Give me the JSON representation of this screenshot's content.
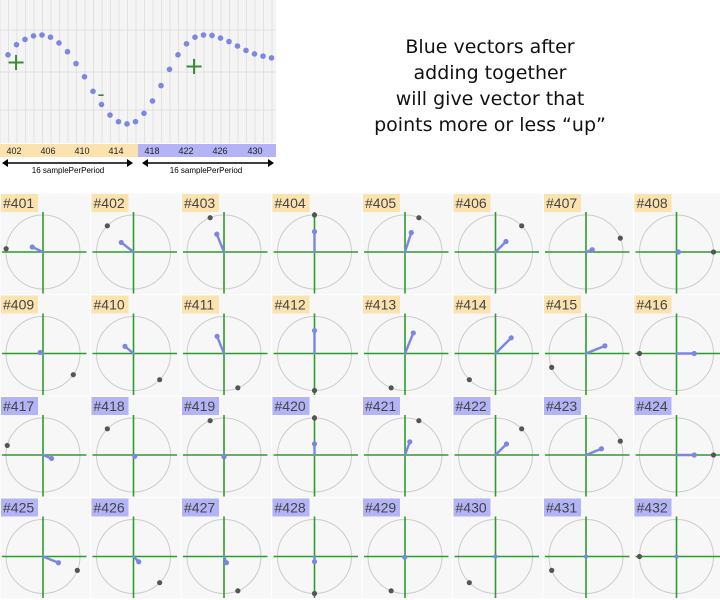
{
  "waveform": {
    "samples": [
      0.55,
      0.78,
      0.9,
      0.98,
      1.0,
      0.95,
      0.82,
      0.62,
      0.35,
      0.05,
      -0.28,
      -0.58,
      -0.82,
      -0.97,
      -1.02,
      -0.97,
      -0.78,
      -0.5,
      -0.15,
      0.22,
      0.55,
      0.8,
      0.95,
      1.0,
      0.99,
      0.93,
      0.85,
      0.75,
      0.65,
      0.57,
      0.52,
      0.48,
      0.46
    ],
    "plus_symbol": "+",
    "minus_symbol": "-",
    "ticks_first_period": [
      "402",
      "406",
      "410",
      "414"
    ],
    "ticks_second_period": [
      "418",
      "422",
      "426",
      "430"
    ],
    "period_label_left": "16 samplePerPeriod",
    "period_label_right": "16 samplePerPeriod",
    "colors": {
      "dots": "#7b87e0",
      "sign": "#3a8a3a",
      "band_first": "#fbe3b0",
      "band_second": "#b3b3f5",
      "plot_bg": "#f4f4f4"
    }
  },
  "caption": {
    "lines": [
      "Blue vectors after",
      "adding together",
      "will give vector that",
      "points more or less “up”"
    ]
  },
  "cells": [
    {
      "label": "#401",
      "group": "first",
      "vec_deg": 155,
      "vec_len": 0.32,
      "dot_deg": 175
    },
    {
      "label": "#402",
      "group": "first",
      "vec_deg": 142,
      "vec_len": 0.42,
      "dot_deg": 135
    },
    {
      "label": "#403",
      "group": "first",
      "vec_deg": 112,
      "vec_len": 0.52,
      "dot_deg": 112
    },
    {
      "label": "#404",
      "group": "first",
      "vec_deg": 90,
      "vec_len": 0.55,
      "dot_deg": 90
    },
    {
      "label": "#405",
      "group": "first",
      "vec_deg": 72,
      "vec_len": 0.55,
      "dot_deg": 68
    },
    {
      "label": "#406",
      "group": "first",
      "vec_deg": 45,
      "vec_len": 0.4,
      "dot_deg": 45
    },
    {
      "label": "#407",
      "group": "first",
      "vec_deg": 20,
      "vec_len": 0.18,
      "dot_deg": 22
    },
    {
      "label": "#408",
      "group": "first",
      "vec_deg": 0,
      "vec_len": 0.05,
      "dot_deg": 0
    },
    {
      "label": "#409",
      "group": "first",
      "vec_deg": 160,
      "vec_len": 0.08,
      "dot_deg": -35
    },
    {
      "label": "#410",
      "group": "first",
      "vec_deg": 140,
      "vec_len": 0.3,
      "dot_deg": -45
    },
    {
      "label": "#411",
      "group": "first",
      "vec_deg": 112,
      "vec_len": 0.5,
      "dot_deg": -68
    },
    {
      "label": "#412",
      "group": "first",
      "vec_deg": 90,
      "vec_len": 0.62,
      "dot_deg": -90
    },
    {
      "label": "#413",
      "group": "first",
      "vec_deg": 68,
      "vec_len": 0.6,
      "dot_deg": -112
    },
    {
      "label": "#414",
      "group": "first",
      "vec_deg": 45,
      "vec_len": 0.6,
      "dot_deg": -135
    },
    {
      "label": "#415",
      "group": "first",
      "vec_deg": 22,
      "vec_len": 0.55,
      "dot_deg": -158
    },
    {
      "label": "#416",
      "group": "first",
      "vec_deg": 0,
      "vec_len": 0.48,
      "dot_deg": 180
    },
    {
      "label": "#417",
      "group": "second",
      "vec_deg": -22,
      "vec_len": 0.25,
      "dot_deg": 165
    },
    {
      "label": "#418",
      "group": "second",
      "vec_deg": -45,
      "vec_len": 0.05,
      "dot_deg": 135
    },
    {
      "label": "#419",
      "group": "second",
      "vec_deg": -90,
      "vec_len": 0.05,
      "dot_deg": 112
    },
    {
      "label": "#420",
      "group": "second",
      "vec_deg": 90,
      "vec_len": 0.3,
      "dot_deg": 90
    },
    {
      "label": "#421",
      "group": "second",
      "vec_deg": 70,
      "vec_len": 0.38,
      "dot_deg": 68
    },
    {
      "label": "#422",
      "group": "second",
      "vec_deg": 45,
      "vec_len": 0.42,
      "dot_deg": 45
    },
    {
      "label": "#423",
      "group": "second",
      "vec_deg": 22,
      "vec_len": 0.45,
      "dot_deg": 22
    },
    {
      "label": "#424",
      "group": "second",
      "vec_deg": 0,
      "vec_len": 0.48,
      "dot_deg": 0
    },
    {
      "label": "#425",
      "group": "second",
      "vec_deg": -22,
      "vec_len": 0.45,
      "dot_deg": -22
    },
    {
      "label": "#426",
      "group": "second",
      "vec_deg": -45,
      "vec_len": 0.2,
      "dot_deg": -45
    },
    {
      "label": "#427",
      "group": "second",
      "vec_deg": -68,
      "vec_len": 0.18,
      "dot_deg": -68
    },
    {
      "label": "#428",
      "group": "second",
      "vec_deg": -90,
      "vec_len": 0.14,
      "dot_deg": -90
    },
    {
      "label": "#429",
      "group": "second",
      "vec_deg": -112,
      "vec_len": 0.02,
      "dot_deg": -112
    },
    {
      "label": "#430",
      "group": "second",
      "vec_deg": 0,
      "vec_len": 0.0,
      "dot_deg": -135
    },
    {
      "label": "#431",
      "group": "second",
      "vec_deg": 0,
      "vec_len": 0.0,
      "dot_deg": -158
    },
    {
      "label": "#432",
      "group": "second",
      "vec_deg": 0,
      "vec_len": 0.0,
      "dot_deg": 180
    }
  ],
  "grid_colors": {
    "axes": "#2e9b2e",
    "circle": "#cccccc",
    "vector": "#7b87e0",
    "gray_dot": "#555555",
    "cell_bg": "#f7f7f7",
    "label_first_bg": "#fbe3b0",
    "label_second_bg": "#b3b3f5",
    "label_text": "#444444"
  }
}
